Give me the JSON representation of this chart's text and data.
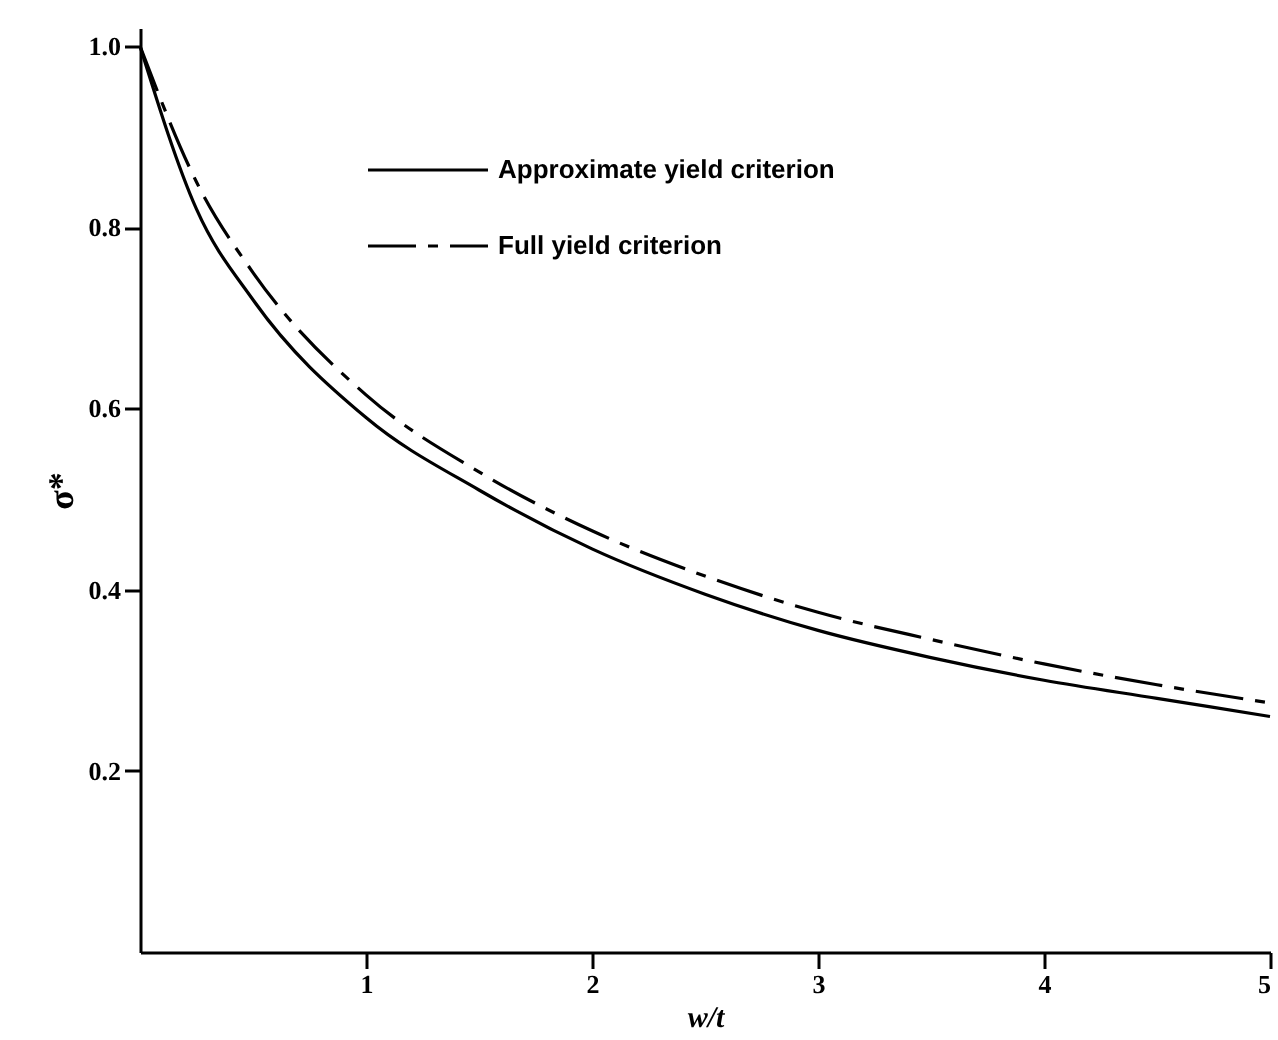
{
  "chart_data": {
    "type": "line",
    "xlabel": "w/t",
    "ylabel": "σ*",
    "x": [
      0,
      0.25,
      0.5,
      1,
      1.5,
      2,
      2.5,
      3,
      3.5,
      4,
      4.5,
      5
    ],
    "series": [
      {
        "name": "Approximate yield criterion",
        "color": "#000000",
        "line_style": "solid",
        "values": [
          1.0,
          0.82,
          0.72,
          0.59,
          0.51,
          0.445,
          0.395,
          0.355,
          0.325,
          0.3,
          0.28,
          0.26
        ]
      },
      {
        "name": "Full yield criterion",
        "color": "#000000",
        "line_style": "dashed",
        "values": [
          1.0,
          0.85,
          0.75,
          0.615,
          0.53,
          0.465,
          0.415,
          0.375,
          0.345,
          0.318,
          0.295,
          0.275
        ]
      }
    ],
    "xlim": [
      0,
      5
    ],
    "ylim": [
      0,
      1.02
    ],
    "xticks": [
      1,
      2,
      3,
      4,
      5
    ],
    "yticks": [
      {
        "value": 0.2,
        "label": "0.2"
      },
      {
        "value": 0.4,
        "label": "0.4"
      },
      {
        "value": 0.6,
        "label": "0.6"
      },
      {
        "value": 0.8,
        "label": "0.8"
      },
      {
        "value": 1.0,
        "label": "1.0"
      }
    ],
    "grid": false,
    "legend": "top",
    "marker": "none"
  }
}
